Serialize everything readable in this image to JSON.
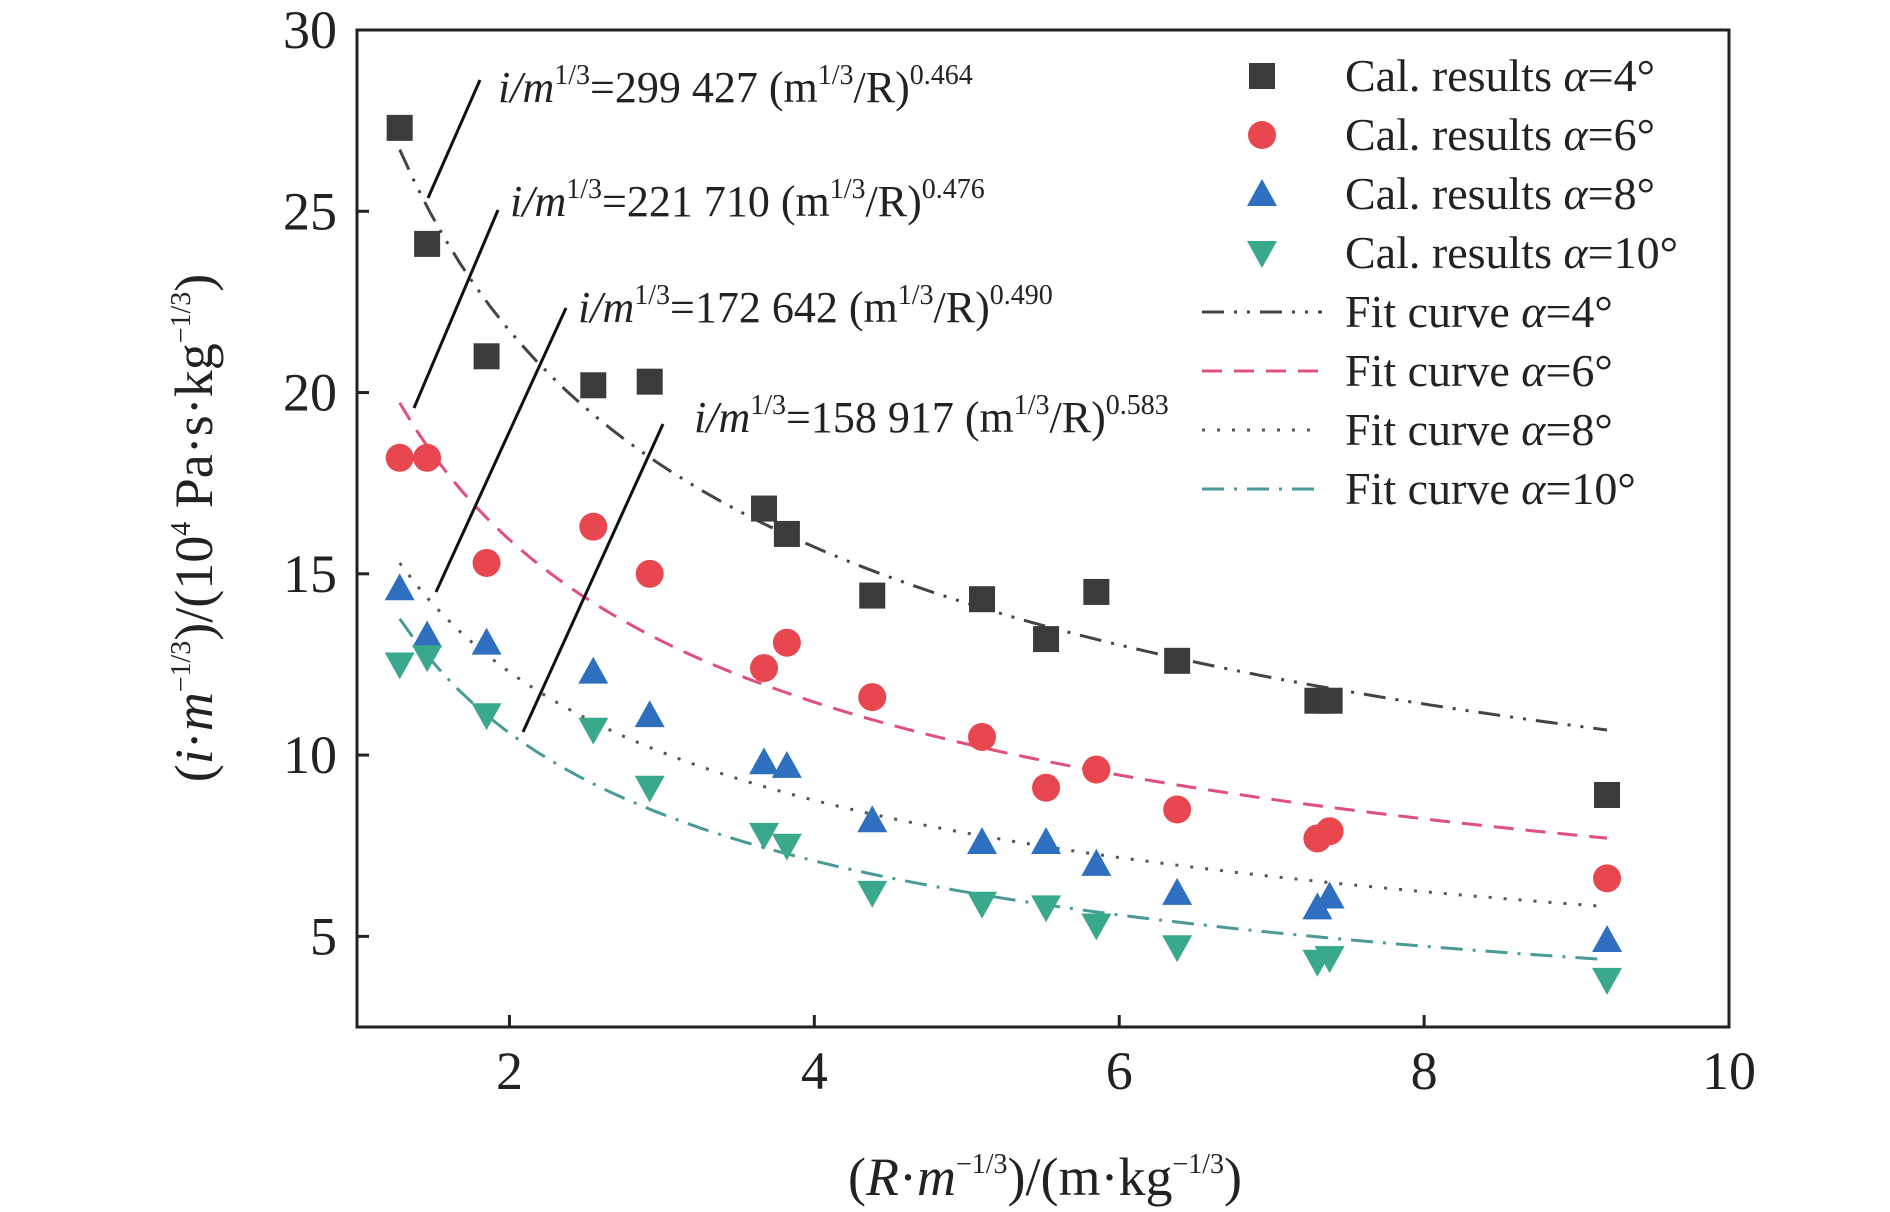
{
  "chart_data": {
    "type": "scatter",
    "xlabel_parts": [
      "(",
      "R",
      "·",
      "m",
      "−1/3",
      ")/(m·kg",
      "−1/3",
      ")"
    ],
    "ylabel_parts": [
      "(",
      "i",
      "·",
      "m",
      "−1/3",
      ")/(10",
      "4",
      " Pa·s·kg",
      "−1/3",
      ")"
    ],
    "xlim": [
      1,
      10
    ],
    "ylim": [
      2.5,
      30
    ],
    "xticks": [
      2,
      4,
      6,
      8,
      10
    ],
    "yticks": [
      5,
      10,
      15,
      20,
      25,
      30
    ],
    "legend_position": "top-right",
    "series": [
      {
        "name": "Cal. results α=4°",
        "label_prefix": "Cal. results ",
        "label_var": "α",
        "label_suffix": "=4°",
        "marker": "square",
        "color": "#3b3b3b",
        "x": [
          1.28,
          1.46,
          1.85,
          2.55,
          2.92,
          3.67,
          3.82,
          4.38,
          5.1,
          5.52,
          5.85,
          6.38,
          7.3,
          7.38,
          9.2
        ],
        "y": [
          27.3,
          24.1,
          21.0,
          20.2,
          20.3,
          16.8,
          16.1,
          14.4,
          14.3,
          13.2,
          14.5,
          12.6,
          11.5,
          11.5,
          8.9
        ]
      },
      {
        "name": "Cal. results α=6°",
        "label_prefix": "Cal. results ",
        "label_var": "α",
        "label_suffix": "=6°",
        "marker": "circle",
        "color": "#e8474f",
        "x": [
          1.28,
          1.46,
          1.85,
          2.55,
          2.92,
          3.67,
          3.82,
          4.38,
          5.1,
          5.52,
          5.85,
          6.38,
          7.3,
          7.38,
          9.2
        ],
        "y": [
          18.2,
          18.2,
          15.3,
          16.3,
          15.0,
          12.4,
          13.1,
          11.6,
          10.5,
          9.1,
          9.6,
          8.5,
          7.7,
          7.9,
          6.6
        ]
      },
      {
        "name": "Cal. results α=8°",
        "label_prefix": "Cal. results ",
        "label_var": "α",
        "label_suffix": "=8°",
        "marker": "triangle-up",
        "color": "#2f6fbf",
        "x": [
          1.28,
          1.46,
          1.85,
          2.55,
          2.92,
          3.67,
          3.82,
          4.38,
          5.1,
          5.52,
          5.85,
          6.38,
          7.3,
          7.38,
          9.2
        ],
        "y": [
          14.6,
          13.3,
          13.1,
          12.3,
          11.1,
          9.8,
          9.7,
          8.2,
          7.6,
          7.6,
          7.0,
          6.2,
          5.8,
          6.1,
          4.9
        ]
      },
      {
        "name": "Cal. results α=10°",
        "label_prefix": "Cal. results ",
        "label_var": "α",
        "label_suffix": "=10°",
        "marker": "triangle-down",
        "color": "#3aa88a",
        "x": [
          1.28,
          1.46,
          1.85,
          2.55,
          2.92,
          3.67,
          3.82,
          4.38,
          5.1,
          5.52,
          5.85,
          6.38,
          7.3,
          7.38,
          9.2
        ],
        "y": [
          12.5,
          12.7,
          11.1,
          10.7,
          9.1,
          7.8,
          7.5,
          6.2,
          5.9,
          5.8,
          5.3,
          4.7,
          4.3,
          4.4,
          3.8
        ]
      }
    ],
    "fit_curves": [
      {
        "name": "Fit curve α=4°",
        "label_prefix": "Fit curve ",
        "label_var": "α",
        "label_suffix": "=4°",
        "coefficient": 299427,
        "exponent": 0.464,
        "x_range": [
          1.28,
          9.2
        ],
        "color": "#444444",
        "dash": "22,10,3,10,3,10"
      },
      {
        "name": "Fit curve α=6°",
        "label_prefix": "Fit curve ",
        "label_var": "α",
        "label_suffix": "=6°",
        "coefficient": 221710,
        "exponent": 0.476,
        "x_range": [
          1.28,
          9.2
        ],
        "color": "#e0507a",
        "dash": "20,12"
      },
      {
        "name": "Fit curve α=8°",
        "label_prefix": "Fit curve ",
        "label_var": "α",
        "label_suffix": "=8°",
        "coefficient": 172642,
        "exponent": 0.49,
        "x_range": [
          1.28,
          9.2
        ],
        "color": "#555555",
        "dash": "3,12"
      },
      {
        "name": "Fit curve α=10°",
        "label_prefix": "Fit curve ",
        "label_var": "α",
        "label_suffix": "=10°",
        "coefficient": 158917,
        "exponent": 0.583,
        "x_range": [
          1.28,
          9.2
        ],
        "color": "#4a9a98",
        "dash": "22,10,3,10"
      }
    ],
    "annotations": [
      {
        "prefix": "i/m",
        "sup1": "1/3",
        "mid": "=299 427 (m",
        "sup2": "1/3",
        "close": "/R)",
        "exp": "0.464"
      },
      {
        "prefix": "i/m",
        "sup1": "1/3",
        "mid": "=221 710 (m",
        "sup2": "1/3",
        "close": "/R)",
        "exp": "0.476"
      },
      {
        "prefix": "i/m",
        "sup1": "1/3",
        "mid": "=172 642 (m",
        "sup2": "1/3",
        "close": "/R)",
        "exp": "0.490"
      },
      {
        "prefix": "i/m",
        "sup1": "1/3",
        "mid": "=158 917 (m",
        "sup2": "1/3",
        "close": "/R)",
        "exp": "0.583"
      }
    ]
  }
}
